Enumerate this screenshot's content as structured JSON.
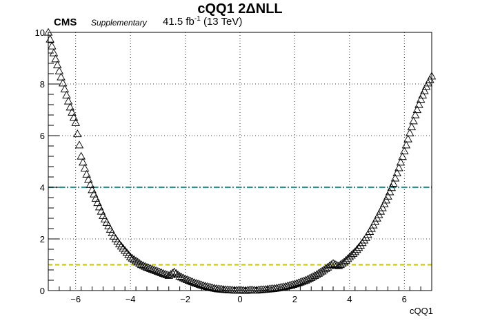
{
  "chart_data": {
    "type": "scatter",
    "title": "cQQ1 2ΔNLL",
    "experiment": "CMS",
    "label": "Supplementary",
    "lumi_text": "41.5 fb",
    "lumi_exp": "-1",
    "energy_text": "(13 TeV)",
    "xlabel": "cQQ1",
    "ylabel": "",
    "xlim": [
      -7,
      7
    ],
    "ylim": [
      0,
      10
    ],
    "x_ticks": [
      -6,
      -4,
      -2,
      0,
      2,
      4,
      6
    ],
    "y_ticks": [
      0,
      2,
      4,
      6,
      8,
      10
    ],
    "grid": true,
    "marker": "open-triangle",
    "reference_lines": [
      {
        "y": 1,
        "color": "#cccc00",
        "style": "dashed"
      },
      {
        "y": 4,
        "color": "#2f8f8f",
        "style": "dash-dot"
      }
    ],
    "series": [
      {
        "points": [
          [
            -7.0,
            10.0
          ],
          [
            -6.8,
            9.2
          ],
          [
            -6.6,
            8.5
          ],
          [
            -6.4,
            7.8
          ],
          [
            -6.2,
            7.1
          ],
          [
            -6.0,
            6.5
          ],
          [
            -5.8,
            5.2
          ],
          [
            -5.6,
            4.5
          ],
          [
            -5.4,
            3.9
          ],
          [
            -5.2,
            3.4
          ],
          [
            -5.0,
            2.9
          ],
          [
            -4.8,
            2.5
          ],
          [
            -4.6,
            2.1
          ],
          [
            -4.4,
            1.8
          ],
          [
            -4.2,
            1.55
          ],
          [
            -4.0,
            1.3
          ],
          [
            -3.8,
            1.15
          ],
          [
            -3.6,
            1.0
          ],
          [
            -3.4,
            0.9
          ],
          [
            -3.2,
            0.82
          ],
          [
            -3.0,
            0.74
          ],
          [
            -2.8,
            0.66
          ],
          [
            -2.6,
            0.58
          ],
          [
            -2.4,
            0.72
          ],
          [
            -2.2,
            0.55
          ],
          [
            -2.0,
            0.45
          ],
          [
            -1.8,
            0.36
          ],
          [
            -1.6,
            0.28
          ],
          [
            -1.4,
            0.21
          ],
          [
            -1.2,
            0.15
          ],
          [
            -1.0,
            0.1
          ],
          [
            -0.8,
            0.06
          ],
          [
            -0.6,
            0.04
          ],
          [
            -0.4,
            0.02
          ],
          [
            -0.2,
            0.01
          ],
          [
            0.0,
            0.01
          ],
          [
            0.2,
            0.0
          ],
          [
            0.4,
            0.02
          ],
          [
            0.6,
            0.01
          ],
          [
            0.8,
            0.03
          ],
          [
            1.0,
            0.05
          ],
          [
            1.2,
            0.07
          ],
          [
            1.4,
            0.1
          ],
          [
            1.6,
            0.14
          ],
          [
            1.8,
            0.19
          ],
          [
            2.0,
            0.25
          ],
          [
            2.2,
            0.32
          ],
          [
            2.4,
            0.4
          ],
          [
            2.6,
            0.5
          ],
          [
            2.8,
            0.62
          ],
          [
            3.0,
            0.75
          ],
          [
            3.2,
            0.9
          ],
          [
            3.4,
            1.05
          ],
          [
            3.6,
            0.95
          ],
          [
            3.8,
            1.1
          ],
          [
            4.0,
            1.3
          ],
          [
            4.2,
            1.5
          ],
          [
            4.4,
            1.75
          ],
          [
            4.6,
            2.05
          ],
          [
            4.8,
            2.4
          ],
          [
            5.0,
            2.8
          ],
          [
            5.2,
            3.2
          ],
          [
            5.4,
            3.65
          ],
          [
            5.6,
            4.15
          ],
          [
            5.8,
            4.75
          ],
          [
            6.0,
            5.4
          ],
          [
            6.2,
            6.1
          ],
          [
            6.4,
            6.8
          ],
          [
            6.6,
            7.4
          ],
          [
            6.8,
            7.9
          ],
          [
            7.0,
            8.3
          ]
        ]
      }
    ]
  }
}
